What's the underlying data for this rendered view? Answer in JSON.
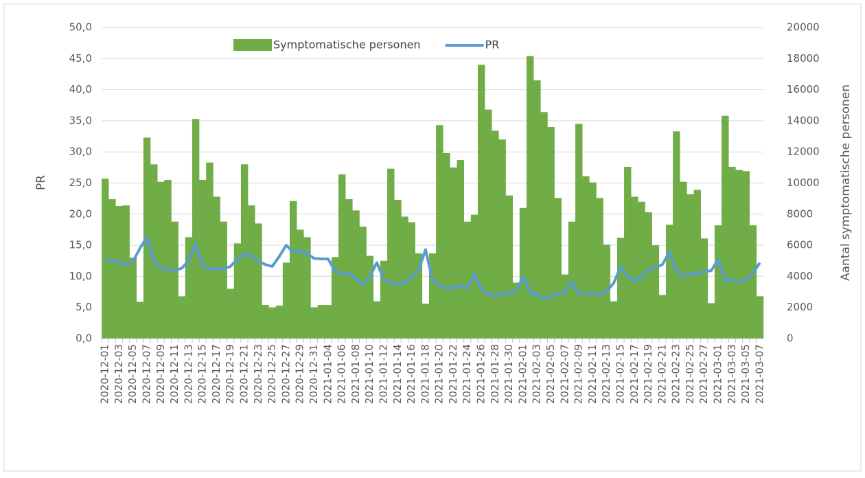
{
  "chart_data": {
    "type": "bar-line",
    "y_label": "PR",
    "y2_label": "Aantal symptomatische personen",
    "categories": [
      "2020-12-01",
      null,
      "2020-12-03",
      null,
      "2020-12-05",
      null,
      "2020-12-07",
      null,
      "2020-12-09",
      null,
      "2020-12-11",
      null,
      "2020-12-13",
      null,
      "2020-12-15",
      null,
      "2020-12-17",
      null,
      "2020-12-19",
      null,
      "2020-12-21",
      null,
      "2020-12-23",
      null,
      "2020-12-25",
      null,
      "2020-12-27",
      null,
      "2020-12-29",
      null,
      "2020-12-31",
      null,
      "2021-01-04",
      null,
      "2021-01-06",
      null,
      "2021-01-08",
      null,
      "2021-01-10",
      null,
      "2021-01-12",
      null,
      "2021-01-14",
      null,
      "2021-01-16",
      null,
      "2021-01-18",
      null,
      "2021-01-20",
      null,
      "2021-01-22",
      null,
      "2021-01-24",
      null,
      "2021-01-26",
      null,
      "2021-01-28",
      null,
      "2021-01-30",
      null,
      "2021-02-01",
      null,
      "2021-02-03",
      null,
      "2021-02-05",
      null,
      "2021-02-07",
      null,
      "2021-02-09",
      null,
      "2021-02-11",
      null,
      "2021-02-13",
      null,
      "2021-02-15",
      null,
      "2021-02-17",
      null,
      "2021-02-19",
      null,
      "2021-02-21",
      null,
      "2021-02-23",
      null,
      "2021-02-25",
      null,
      "2021-02-27",
      null,
      "2021-03-01",
      null,
      "2021-03-03",
      null,
      "2021-03-05",
      null,
      "2021-03-07"
    ],
    "series": [
      {
        "name": "Symptomatische personen",
        "kind": "bar",
        "axis": "y2",
        "color": "#70ad47",
        "values": [
          10280,
          8960,
          8520,
          8560,
          5200,
          2360,
          12920,
          11200,
          10080,
          10200,
          7520,
          2720,
          6520,
          14120,
          10200,
          11320,
          9120,
          7520,
          3200,
          6120,
          11200,
          8560,
          7400,
          2160,
          2000,
          2120,
          4880,
          8840,
          7000,
          6520,
          2000,
          2160,
          2160,
          5240,
          10560,
          8960,
          8240,
          7200,
          5320,
          2400,
          5000,
          10920,
          8920,
          7840,
          7480,
          5480,
          2240,
          5480,
          13720,
          11920,
          11000,
          11480,
          7520,
          7960,
          17600,
          14720,
          13360,
          12800,
          9200,
          3600,
          8400,
          18160,
          16600,
          14560,
          13600,
          9040,
          4120,
          7520,
          13800,
          10440,
          10040,
          9040,
          6040,
          2400,
          6480,
          11040,
          9120,
          8800,
          8120,
          6000,
          2800,
          7320,
          13320,
          10080,
          9280,
          9560,
          6440,
          2280,
          7280,
          14320,
          11040,
          10840,
          10760,
          7280,
          2720
        ]
      },
      {
        "name": "PR",
        "kind": "line",
        "axis": "y",
        "color": "#5b9bd5",
        "values": [
          12.7,
          12.6,
          12.2,
          11.9,
          12.4,
          14.5,
          16.3,
          12.5,
          11.4,
          11.0,
          11.0,
          11.3,
          12.5,
          15.2,
          11.8,
          11.2,
          11.2,
          11.2,
          11.6,
          12.8,
          13.5,
          13.3,
          12.5,
          11.9,
          11.6,
          13.2,
          15.0,
          13.9,
          14.1,
          13.6,
          12.9,
          12.8,
          12.8,
          10.9,
          10.4,
          10.5,
          9.7,
          8.7,
          9.9,
          12.2,
          9.6,
          8.9,
          8.8,
          8.9,
          10.0,
          11.0,
          14.3,
          9.4,
          8.6,
          8.1,
          8.2,
          8.4,
          8.1,
          10.4,
          8.0,
          7.1,
          6.9,
          7.3,
          7.3,
          7.6,
          10.0,
          7.5,
          7.0,
          6.5,
          6.8,
          7.2,
          7.4,
          9.2,
          7.2,
          7.2,
          7.3,
          7.1,
          7.6,
          8.9,
          11.5,
          10.0,
          9.3,
          9.8,
          11.2,
          11.4,
          11.9,
          13.9,
          11.0,
          10.0,
          10.4,
          10.5,
          10.8,
          10.9,
          12.7,
          9.5,
          9.4,
          9.2,
          9.4,
          10.5,
          12.2
        ]
      }
    ],
    "ylim": [
      0,
      50
    ],
    "yticks": [
      {
        "value": 0,
        "label": "0,0"
      },
      {
        "value": 5,
        "label": "5,0"
      },
      {
        "value": 10,
        "label": "10,0"
      },
      {
        "value": 15,
        "label": "15,0"
      },
      {
        "value": 20,
        "label": "20,0"
      },
      {
        "value": 25,
        "label": "25,0"
      },
      {
        "value": 30,
        "label": "30,0"
      },
      {
        "value": 35,
        "label": "35,0"
      },
      {
        "value": 40,
        "label": "40,0"
      },
      {
        "value": 45,
        "label": "45,0"
      },
      {
        "value": 50,
        "label": "50,0"
      }
    ],
    "y2lim": [
      0,
      20000
    ],
    "y2ticks": [
      0,
      2000,
      4000,
      6000,
      8000,
      10000,
      12000,
      14000,
      16000,
      18000,
      20000
    ],
    "grid": true,
    "legend": "top"
  }
}
